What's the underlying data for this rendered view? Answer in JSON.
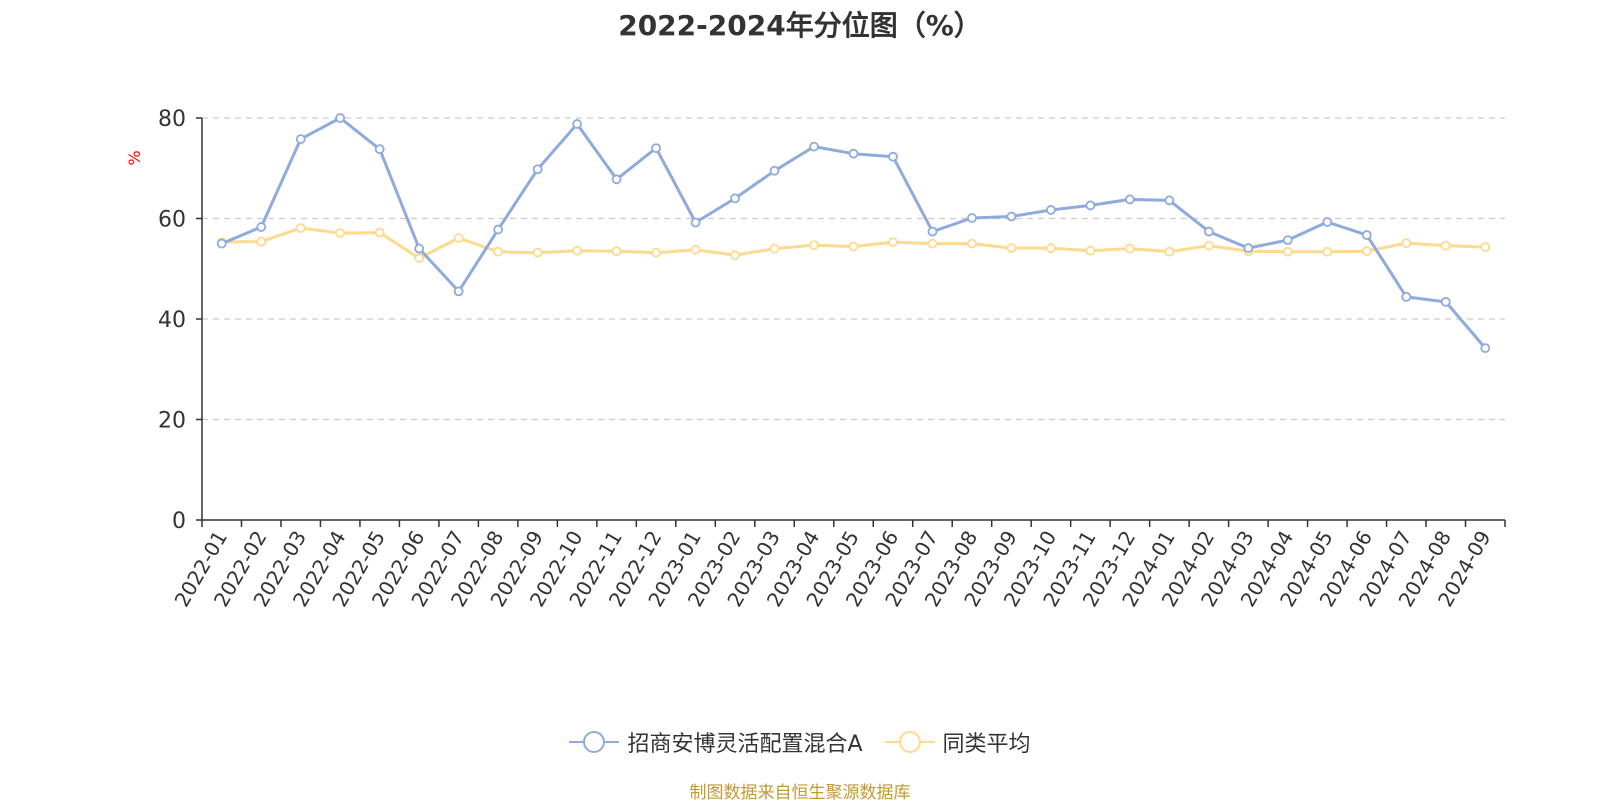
{
  "chart_data": {
    "type": "line",
    "title": "2022-2024年分位图（%）",
    "ylabel": "%",
    "xlabel": "",
    "ylim": [
      0,
      80
    ],
    "yticks": [
      0,
      20,
      40,
      60,
      80
    ],
    "grid": true,
    "legend_position": "bottom",
    "categories": [
      "2022-01",
      "2022-02",
      "2022-03",
      "2022-04",
      "2022-05",
      "2022-06",
      "2022-07",
      "2022-08",
      "2022-09",
      "2022-10",
      "2022-11",
      "2022-12",
      "2023-01",
      "2023-02",
      "2023-03",
      "2023-04",
      "2023-05",
      "2023-06",
      "2023-07",
      "2023-08",
      "2023-09",
      "2023-10",
      "2023-11",
      "2023-12",
      "2024-01",
      "2024-02",
      "2024-03",
      "2024-04",
      "2024-05",
      "2024-06",
      "2024-07",
      "2024-08",
      "2024-09"
    ],
    "series": [
      {
        "name": "招商安博灵活配置混合A",
        "color": "#8faadc",
        "values": [
          55.0,
          58.3,
          75.8,
          80.0,
          73.8,
          54.0,
          45.5,
          57.8,
          69.8,
          78.8,
          67.8,
          74.0,
          59.2,
          64.0,
          69.5,
          74.3,
          72.9,
          72.3,
          57.4,
          60.1,
          60.4,
          61.7,
          62.6,
          63.8,
          63.6,
          57.4,
          54.1,
          55.7,
          59.3,
          56.7,
          44.4,
          43.4,
          34.2
        ]
      },
      {
        "name": "同类平均",
        "color": "#ffd98e",
        "values": [
          55.3,
          55.4,
          58.1,
          57.1,
          57.2,
          52.1,
          56.1,
          53.4,
          53.2,
          53.6,
          53.5,
          53.2,
          53.8,
          52.7,
          54.0,
          54.7,
          54.4,
          55.3,
          55.0,
          55.0,
          54.1,
          54.1,
          53.6,
          54.0,
          53.4,
          54.6,
          53.5,
          53.4,
          53.4,
          53.5,
          55.1,
          54.6,
          54.3
        ]
      }
    ]
  },
  "source_note": "制图数据来自恒生聚源数据库"
}
